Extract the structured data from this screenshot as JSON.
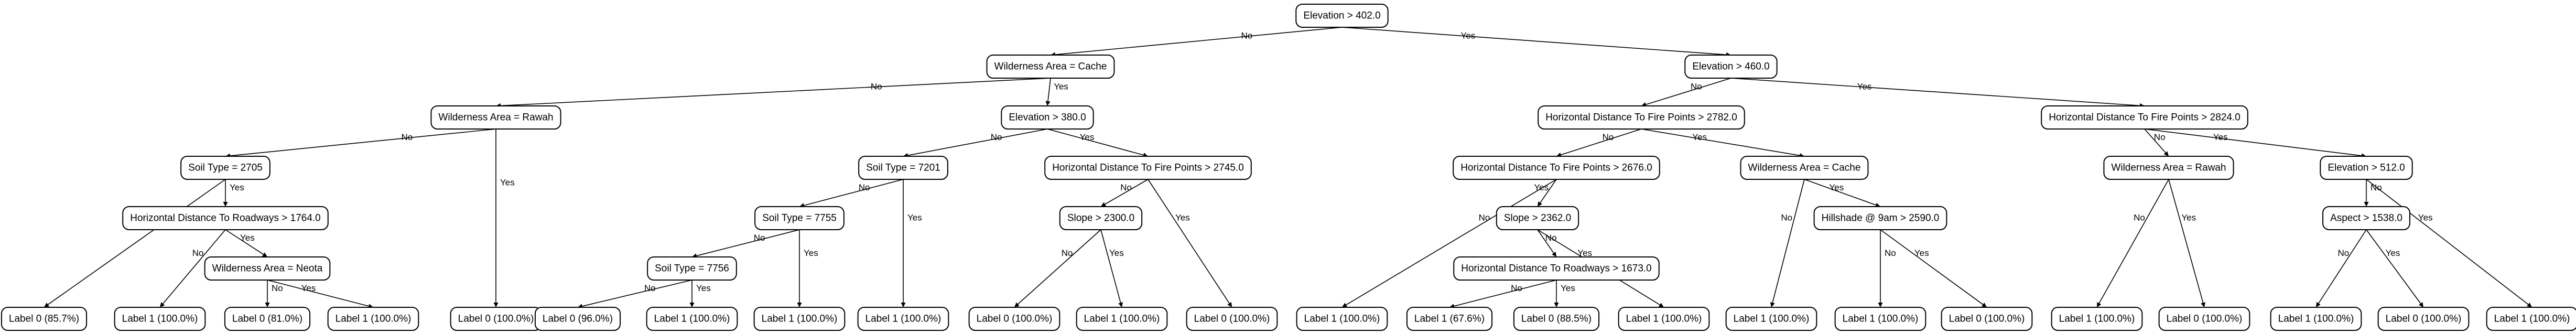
{
  "tree": {
    "nodes": [
      {
        "id": "n0",
        "text": "Elevation > 402.0"
      },
      {
        "id": "n1",
        "text": "Wilderness Area = Cache"
      },
      {
        "id": "n2",
        "text": "Elevation > 460.0"
      },
      {
        "id": "n3",
        "text": "Wilderness Area = Rawah"
      },
      {
        "id": "n4",
        "text": "Elevation > 380.0"
      },
      {
        "id": "n5",
        "text": "Horizontal Distance To Fire Points > 2782.0"
      },
      {
        "id": "n6",
        "text": "Horizontal Distance To Fire Points > 2824.0"
      },
      {
        "id": "n7",
        "text": "Soil Type = 2705"
      },
      {
        "id": "n8",
        "text": "Soil Type = 7201"
      },
      {
        "id": "n9",
        "text": "Horizontal Distance To Fire Points > 2745.0"
      },
      {
        "id": "n10",
        "text": "Horizontal Distance To Fire Points > 2676.0"
      },
      {
        "id": "n11",
        "text": "Wilderness Area = Cache"
      },
      {
        "id": "n12",
        "text": "Wilderness Area = Rawah"
      },
      {
        "id": "n13",
        "text": "Elevation > 512.0"
      },
      {
        "id": "n14",
        "text": "Horizontal Distance To Roadways > 1764.0"
      },
      {
        "id": "n15",
        "text": "Soil Type = 7755"
      },
      {
        "id": "n16",
        "text": "Slope > 2300.0"
      },
      {
        "id": "n17",
        "text": "Slope > 2362.0"
      },
      {
        "id": "n18",
        "text": "Hillshade @ 9am > 2590.0"
      },
      {
        "id": "n19",
        "text": "Aspect > 1538.0"
      },
      {
        "id": "n20",
        "text": "Wilderness Area = Neota"
      },
      {
        "id": "n21",
        "text": "Soil Type = 7756"
      },
      {
        "id": "n22",
        "text": "Horizontal Distance To Roadways > 1673.0"
      },
      {
        "id": "l0",
        "text": "Label 0 (85.7%)"
      },
      {
        "id": "l1",
        "text": "Label 1 (100.0%)"
      },
      {
        "id": "l2",
        "text": "Label 0 (81.0%)"
      },
      {
        "id": "l3",
        "text": "Label 1 (100.0%)"
      },
      {
        "id": "l4",
        "text": "Label 0 (100.0%)"
      },
      {
        "id": "l5",
        "text": "Label 0 (96.0%)"
      },
      {
        "id": "l6",
        "text": "Label 1 (100.0%)"
      },
      {
        "id": "l7",
        "text": "Label 1 (100.0%)"
      },
      {
        "id": "l8",
        "text": "Label 1 (100.0%)"
      },
      {
        "id": "l9",
        "text": "Label 0 (100.0%)"
      },
      {
        "id": "l10",
        "text": "Label 1 (100.0%)"
      },
      {
        "id": "l11",
        "text": "Label 0 (100.0%)"
      },
      {
        "id": "l12",
        "text": "Label 1 (100.0%)"
      },
      {
        "id": "l13",
        "text": "Label 1 (67.6%)"
      },
      {
        "id": "l14",
        "text": "Label 0 (88.5%)"
      },
      {
        "id": "l15",
        "text": "Label 1 (100.0%)"
      },
      {
        "id": "l16",
        "text": "Label 1 (100.0%)"
      },
      {
        "id": "l17",
        "text": "Label 1 (100.0%)"
      },
      {
        "id": "l18",
        "text": "Label 0 (100.0%)"
      },
      {
        "id": "l19",
        "text": "Label 1 (100.0%)"
      },
      {
        "id": "l20",
        "text": "Label 0 (100.0%)"
      },
      {
        "id": "l21",
        "text": "Label 1 (100.0%)"
      },
      {
        "id": "l22",
        "text": "Label 0 (100.0%)"
      },
      {
        "id": "l23",
        "text": "Label 1 (100.0%)"
      }
    ],
    "edges": [
      {
        "from": "n0",
        "to": "n1",
        "label": "No"
      },
      {
        "from": "n0",
        "to": "n2",
        "label": "Yes"
      },
      {
        "from": "n1",
        "to": "n3",
        "label": "No"
      },
      {
        "from": "n1",
        "to": "n4",
        "label": "Yes"
      },
      {
        "from": "n2",
        "to": "n5",
        "label": "No"
      },
      {
        "from": "n2",
        "to": "n6",
        "label": "Yes"
      },
      {
        "from": "n3",
        "to": "n7",
        "label": "No"
      },
      {
        "from": "n3",
        "to": "l4",
        "label": "Yes"
      },
      {
        "from": "n4",
        "to": "n8",
        "label": "No"
      },
      {
        "from": "n4",
        "to": "n9",
        "label": "Yes"
      },
      {
        "from": "n5",
        "to": "n10",
        "label": "No"
      },
      {
        "from": "n5",
        "to": "n11",
        "label": "Yes"
      },
      {
        "from": "n6",
        "to": "n12",
        "label": "No"
      },
      {
        "from": "n6",
        "to": "n13",
        "label": "Yes"
      },
      {
        "from": "n7",
        "to": "l0",
        "label": "No"
      },
      {
        "from": "n7",
        "to": "n14",
        "label": "Yes"
      },
      {
        "from": "n8",
        "to": "n15",
        "label": "No"
      },
      {
        "from": "n8",
        "to": "l8",
        "label": "Yes"
      },
      {
        "from": "n9",
        "to": "n16",
        "label": "No"
      },
      {
        "from": "n9",
        "to": "l11",
        "label": "Yes"
      },
      {
        "from": "n10",
        "to": "l12",
        "label": "No"
      },
      {
        "from": "n10",
        "to": "n17",
        "label": "Yes"
      },
      {
        "from": "n11",
        "to": "l16",
        "label": "No"
      },
      {
        "from": "n11",
        "to": "n18",
        "label": "Yes"
      },
      {
        "from": "n12",
        "to": "l19",
        "label": "No"
      },
      {
        "from": "n12",
        "to": "l20",
        "label": "Yes"
      },
      {
        "from": "n13",
        "to": "n19",
        "label": "No"
      },
      {
        "from": "n13",
        "to": "l23",
        "label": "Yes"
      },
      {
        "from": "n14",
        "to": "l1",
        "label": "No"
      },
      {
        "from": "n14",
        "to": "n20",
        "label": "Yes"
      },
      {
        "from": "n15",
        "to": "n21",
        "label": "No"
      },
      {
        "from": "n15",
        "to": "l7",
        "label": "Yes"
      },
      {
        "from": "n16",
        "to": "l9",
        "label": "No"
      },
      {
        "from": "n16",
        "to": "l10",
        "label": "Yes"
      },
      {
        "from": "n17",
        "to": "n22",
        "label": "No"
      },
      {
        "from": "n17",
        "to": "l15",
        "label": "Yes"
      },
      {
        "from": "n18",
        "to": "l17",
        "label": "No"
      },
      {
        "from": "n18",
        "to": "l18",
        "label": "Yes"
      },
      {
        "from": "n19",
        "to": "l21",
        "label": "No"
      },
      {
        "from": "n19",
        "to": "l22",
        "label": "Yes"
      },
      {
        "from": "n20",
        "to": "l2",
        "label": "No"
      },
      {
        "from": "n20",
        "to": "l3",
        "label": "Yes"
      },
      {
        "from": "n21",
        "to": "l5",
        "label": "No"
      },
      {
        "from": "n21",
        "to": "l6",
        "label": "Yes"
      },
      {
        "from": "n22",
        "to": "l13",
        "label": "No"
      },
      {
        "from": "n22",
        "to": "l14",
        "label": "Yes"
      }
    ]
  }
}
